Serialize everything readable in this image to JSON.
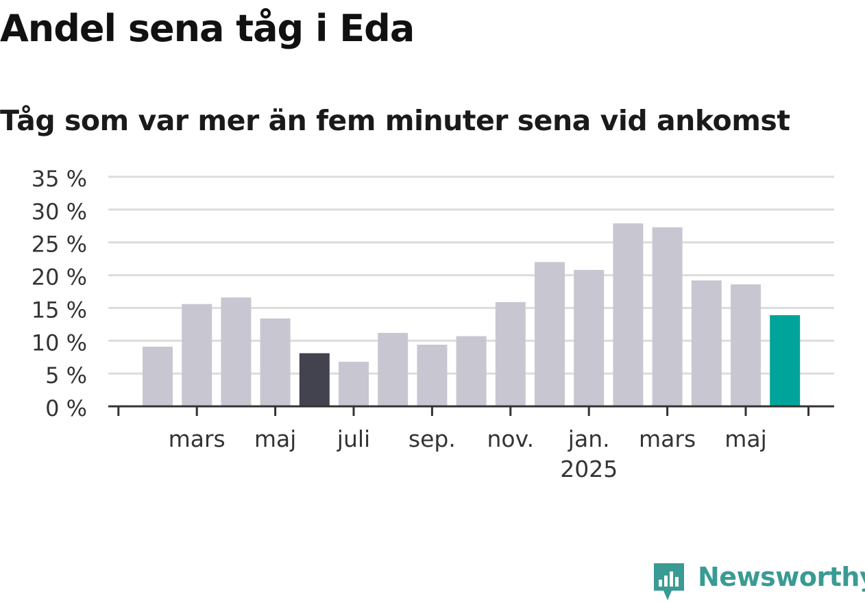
{
  "title": "Andel sena tåg i Eda",
  "subtitle": "Tåg som var mer än fem minuter sena vid ankomst",
  "brand": {
    "name": "Newsworthy",
    "color": "#3a9a94"
  },
  "colors": {
    "default_bar": "#c8c7d1",
    "highlight_bar": "#43424f",
    "latest_bar": "#00a49a",
    "grid": "#dcdcdc",
    "axis": "#333333"
  },
  "chart_data": {
    "type": "bar",
    "categories": [
      "2024-02",
      "2024-03",
      "2024-04",
      "2024-05",
      "2024-06",
      "2024-07",
      "2024-08",
      "2024-09",
      "2024-10",
      "2024-11",
      "2024-12",
      "2025-01",
      "2025-02",
      "2025-03",
      "2025-04",
      "2025-05",
      "2025-06"
    ],
    "values": [
      9.1,
      15.6,
      16.6,
      13.4,
      8.1,
      6.8,
      11.2,
      9.4,
      10.7,
      15.9,
      22.0,
      20.8,
      27.9,
      27.3,
      19.2,
      18.6,
      13.9
    ],
    "highlight": {
      "2024-06": "highlight_bar",
      "2025-06": "latest_bar"
    },
    "ylim": [
      0,
      35
    ],
    "yticks": [
      {
        "value": 0,
        "label": "0 %"
      },
      {
        "value": 5,
        "label": "5 %"
      },
      {
        "value": 10,
        "label": "10 %"
      },
      {
        "value": 15,
        "label": "15 %"
      },
      {
        "value": 20,
        "label": "20 %"
      },
      {
        "value": 25,
        "label": "25 %"
      },
      {
        "value": 30,
        "label": "30 %"
      },
      {
        "value": 35,
        "label": "35 %"
      }
    ],
    "xticks": [
      {
        "at": "2024-03",
        "label": "mars",
        "sublabel": ""
      },
      {
        "at": "2024-05",
        "label": "maj",
        "sublabel": ""
      },
      {
        "at": "2024-07",
        "label": "juli",
        "sublabel": ""
      },
      {
        "at": "2024-09",
        "label": "sep.",
        "sublabel": ""
      },
      {
        "at": "2024-11",
        "label": "nov.",
        "sublabel": ""
      },
      {
        "at": "2025-01",
        "label": "jan.",
        "sublabel": "2025"
      },
      {
        "at": "2025-03",
        "label": "mars",
        "sublabel": ""
      },
      {
        "at": "2025-05",
        "label": "maj",
        "sublabel": ""
      }
    ],
    "grid": true,
    "legend": "none"
  }
}
